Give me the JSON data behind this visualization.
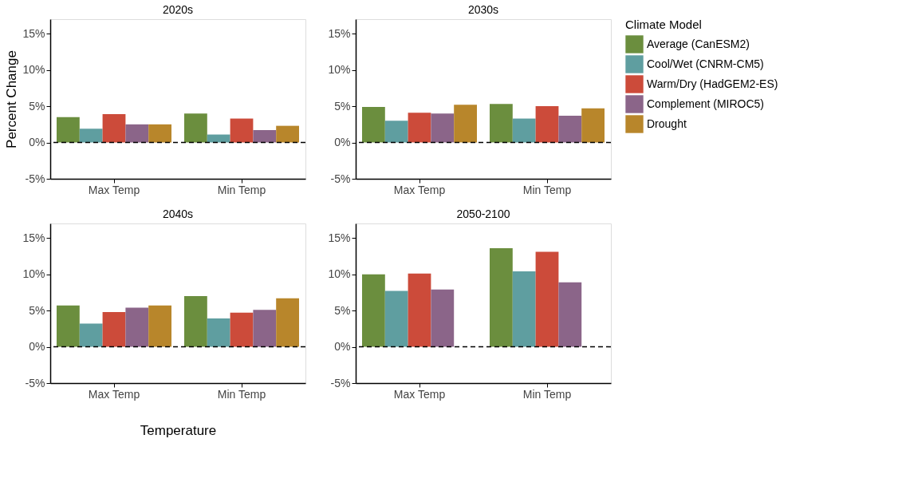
{
  "chart_data": [
    {
      "type": "bar",
      "title": "2020s",
      "ylabel": "Percent Change",
      "categories": [
        "Max Temp",
        "Min Temp"
      ],
      "ylim": [
        -5,
        17
      ],
      "yticks": [
        {
          "value": -5,
          "label": "-5%"
        },
        {
          "value": 0,
          "label": "0%"
        },
        {
          "value": 5,
          "label": "5%"
        },
        {
          "value": 10,
          "label": "10%"
        },
        {
          "value": 15,
          "label": "15%"
        }
      ],
      "grid": false,
      "legend": false,
      "ref_lines": [
        {
          "axis": "y",
          "value": 0,
          "line_style": "dashed",
          "color": "#000000"
        }
      ],
      "series": [
        {
          "color": "#6b8e3e",
          "values": [
            3.5,
            4.0
          ]
        },
        {
          "color": "#5f9ea0",
          "values": [
            1.9,
            1.1
          ]
        },
        {
          "color": "#cc4b3a",
          "values": [
            3.9,
            3.3
          ]
        },
        {
          "color": "#8b6589",
          "values": [
            2.5,
            1.7
          ]
        },
        {
          "color": "#b8862b",
          "values": [
            2.5,
            2.3
          ]
        }
      ]
    },
    {
      "type": "bar",
      "title": "2030s",
      "categories": [
        "Max Temp",
        "Min Temp"
      ],
      "ylim": [
        -5,
        17
      ],
      "yticks": [
        {
          "value": -5,
          "label": "-5%"
        },
        {
          "value": 0,
          "label": "0%"
        },
        {
          "value": 5,
          "label": "5%"
        },
        {
          "value": 10,
          "label": "10%"
        },
        {
          "value": 15,
          "label": "15%"
        }
      ],
      "grid": false,
      "legend": "right",
      "legend_title": "Climate Model",
      "ref_lines": [
        {
          "axis": "y",
          "value": 0,
          "line_style": "dashed",
          "color": "#000000"
        }
      ],
      "series": [
        {
          "name": "Average (CanESM2)",
          "color": "#6b8e3e",
          "values": [
            4.9,
            5.3
          ]
        },
        {
          "name": "Cool/Wet (CNRM-CM5)",
          "color": "#5f9ea0",
          "values": [
            3.0,
            3.3
          ]
        },
        {
          "name": "Warm/Dry (HadGEM2-ES)",
          "color": "#cc4b3a",
          "values": [
            4.1,
            5.0
          ]
        },
        {
          "name": "Complement (MIROC5)",
          "color": "#8b6589",
          "values": [
            4.0,
            3.7
          ]
        },
        {
          "name": "Drought",
          "color": "#b8862b",
          "values": [
            5.2,
            4.7
          ]
        }
      ]
    },
    {
      "type": "bar",
      "title": "2040s",
      "xlabel": "Temperature",
      "categories": [
        "Max Temp",
        "Min Temp"
      ],
      "ylim": [
        -5,
        17
      ],
      "yticks": [
        {
          "value": -5,
          "label": "-5%"
        },
        {
          "value": 0,
          "label": "0%"
        },
        {
          "value": 5,
          "label": "5%"
        },
        {
          "value": 10,
          "label": "10%"
        },
        {
          "value": 15,
          "label": "15%"
        }
      ],
      "grid": false,
      "legend": false,
      "ref_lines": [
        {
          "axis": "y",
          "value": 0,
          "line_style": "dashed",
          "color": "#000000"
        }
      ],
      "series": [
        {
          "color": "#6b8e3e",
          "values": [
            5.7,
            7.0
          ]
        },
        {
          "color": "#5f9ea0",
          "values": [
            3.2,
            3.9
          ]
        },
        {
          "color": "#cc4b3a",
          "values": [
            4.8,
            4.7
          ]
        },
        {
          "color": "#8b6589",
          "values": [
            5.4,
            5.1
          ]
        },
        {
          "color": "#b8862b",
          "values": [
            5.7,
            6.7
          ]
        }
      ]
    },
    {
      "type": "bar",
      "title": "2050-2100",
      "categories": [
        "Max Temp",
        "Min Temp"
      ],
      "ylim": [
        -5,
        17
      ],
      "yticks": [
        {
          "value": -5,
          "label": "-5%"
        },
        {
          "value": 0,
          "label": "0%"
        },
        {
          "value": 5,
          "label": "5%"
        },
        {
          "value": 10,
          "label": "10%"
        },
        {
          "value": 15,
          "label": "15%"
        }
      ],
      "grid": false,
      "legend": false,
      "ref_lines": [
        {
          "axis": "y",
          "value": 0,
          "line_style": "dashed",
          "color": "#000000"
        }
      ],
      "series": [
        {
          "color": "#6b8e3e",
          "values": [
            10.0,
            13.6
          ]
        },
        {
          "color": "#5f9ea0",
          "values": [
            7.7,
            10.4
          ]
        },
        {
          "color": "#cc4b3a",
          "values": [
            10.1,
            13.1
          ]
        },
        {
          "color": "#8b6589",
          "values": [
            7.9,
            8.9
          ]
        },
        {
          "color": "#b8862b",
          "values": [
            null,
            null
          ]
        }
      ]
    }
  ]
}
